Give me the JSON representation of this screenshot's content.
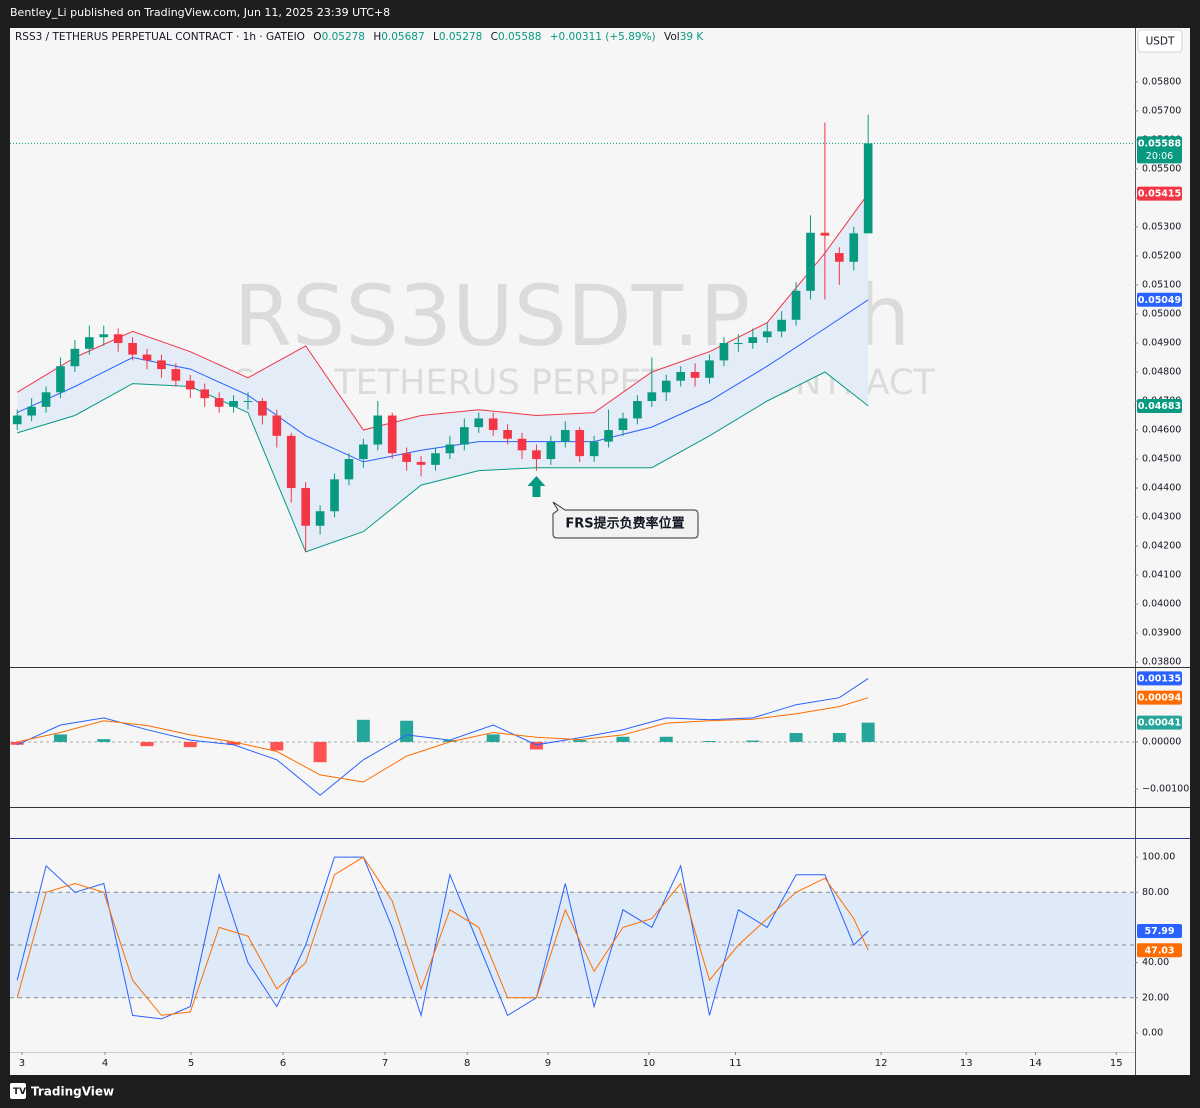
{
  "header": {
    "publisher": "Bentley_Li published on TradingView.com, Jun 11, 2025 23:39 UTC+8"
  },
  "footer": {
    "brand": "TradingView"
  },
  "chart_data": [
    {
      "type": "candlestick",
      "title": "RSS3 / TETHERUS PERPETUAL CONTRACT · 1h · GATEIO",
      "watermark": "RSS3USDT.P, 1h",
      "watermark_subtitle": "RSS3 / TETHERUS PERPETUAL CONTRACT",
      "ohlc_labels": [
        "O",
        "H",
        "L",
        "C"
      ],
      "change": "+0.00311 (+5.89%)",
      "volume_label": "Vol",
      "volume": "39 K",
      "currency": "USDT",
      "countdown": "20:06",
      "annotation": "FRS提示负费率位置",
      "up_color": "#089981",
      "down_color": "#f23645",
      "candles": {
        "open": [
          0.0462,
          0.0465,
          0.0468,
          0.0473,
          0.0482,
          0.0488,
          0.0492,
          0.0493,
          0.049,
          0.0486,
          0.0484,
          0.0481,
          0.0477,
          0.0474,
          0.0471,
          0.0468,
          0.047,
          0.047,
          0.0465,
          0.0458,
          0.044,
          0.0427,
          0.0432,
          0.0443,
          0.045,
          0.0455,
          0.0465,
          0.0452,
          0.0449,
          0.0448,
          0.0452,
          0.0455,
          0.0461,
          0.0464,
          0.046,
          0.0457,
          0.0453,
          0.045,
          0.0456,
          0.046,
          0.0451,
          0.0456,
          0.046,
          0.0464,
          0.047,
          0.0473,
          0.0477,
          0.048,
          0.0478,
          0.0484,
          0.049,
          0.049,
          0.0492,
          0.0494,
          0.0498,
          0.0508,
          0.0528,
          0.0521,
          0.0518,
          0.05278
        ],
        "high": [
          0.0467,
          0.0471,
          0.0475,
          0.0485,
          0.0491,
          0.0496,
          0.0496,
          0.0495,
          0.0492,
          0.0488,
          0.0486,
          0.0483,
          0.0479,
          0.0476,
          0.0473,
          0.0472,
          0.0473,
          0.0471,
          0.0467,
          0.0459,
          0.0442,
          0.0434,
          0.0445,
          0.0452,
          0.0457,
          0.047,
          0.0466,
          0.0454,
          0.0451,
          0.0454,
          0.0458,
          0.0464,
          0.0466,
          0.0466,
          0.0462,
          0.0459,
          0.0455,
          0.0458,
          0.0463,
          0.0461,
          0.0458,
          0.0467,
          0.0466,
          0.0472,
          0.0485,
          0.0479,
          0.0482,
          0.0483,
          0.0486,
          0.0492,
          0.0493,
          0.0495,
          0.0497,
          0.0501,
          0.0511,
          0.0534,
          0.0566,
          0.0523,
          0.053,
          0.05687
        ],
        "low": [
          0.046,
          0.0463,
          0.0466,
          0.0471,
          0.048,
          0.0486,
          0.0489,
          0.0487,
          0.0484,
          0.0481,
          0.0478,
          0.0475,
          0.0471,
          0.0468,
          0.0466,
          0.0466,
          0.0467,
          0.0462,
          0.0454,
          0.0435,
          0.0418,
          0.0424,
          0.043,
          0.0441,
          0.0447,
          0.0453,
          0.045,
          0.0446,
          0.0444,
          0.0446,
          0.045,
          0.0453,
          0.0459,
          0.0458,
          0.0455,
          0.045,
          0.0446,
          0.0448,
          0.0454,
          0.0449,
          0.0449,
          0.0454,
          0.0458,
          0.0462,
          0.0468,
          0.047,
          0.0475,
          0.0475,
          0.0476,
          0.0482,
          0.0487,
          0.0488,
          0.049,
          0.0492,
          0.0496,
          0.0505,
          0.0505,
          0.051,
          0.0515,
          0.05278
        ],
        "close": [
          0.0465,
          0.0468,
          0.0473,
          0.0482,
          0.0488,
          0.0492,
          0.0493,
          0.049,
          0.0486,
          0.0484,
          0.0481,
          0.0477,
          0.0474,
          0.0471,
          0.0468,
          0.047,
          0.047,
          0.0465,
          0.0458,
          0.044,
          0.0427,
          0.0432,
          0.0443,
          0.045,
          0.0455,
          0.0465,
          0.0452,
          0.0449,
          0.0448,
          0.0452,
          0.0455,
          0.0461,
          0.0464,
          0.046,
          0.0457,
          0.0453,
          0.045,
          0.0456,
          0.046,
          0.0451,
          0.0456,
          0.046,
          0.0464,
          0.047,
          0.0473,
          0.0477,
          0.048,
          0.0478,
          0.0484,
          0.049,
          0.049,
          0.0492,
          0.0494,
          0.0498,
          0.0508,
          0.0528,
          0.0527,
          0.0518,
          0.05278,
          0.05588
        ]
      },
      "bands": {
        "x": [
          0,
          4,
          8,
          12,
          16,
          20,
          24,
          28,
          32,
          36,
          40,
          44,
          48,
          52,
          56,
          59
        ],
        "fill": "#e3ecf7",
        "upper": {
          "color": "#f23645",
          "values": [
            0.0473,
            0.0485,
            0.0494,
            0.0487,
            0.0478,
            0.0489,
            0.046,
            0.0465,
            0.0467,
            0.0465,
            0.0466,
            0.048,
            0.0487,
            0.0497,
            0.0521,
            0.05415
          ]
        },
        "middle": {
          "color": "#2962ff",
          "values": [
            0.0466,
            0.0475,
            0.0485,
            0.0481,
            0.0472,
            0.0458,
            0.0449,
            0.0453,
            0.0456,
            0.0456,
            0.0456,
            0.0461,
            0.047,
            0.0482,
            0.0495,
            0.05049
          ]
        },
        "lower": {
          "color": "#089981",
          "values": [
            0.0459,
            0.0465,
            0.0476,
            0.0475,
            0.0466,
            0.0418,
            0.0425,
            0.0441,
            0.0446,
            0.0447,
            0.0447,
            0.0447,
            0.0458,
            0.047,
            0.048,
            0.04683
          ]
        }
      },
      "xlim": [
        0,
        78
      ],
      "xticks": [
        {
          "value": 0.83,
          "label": "3"
        },
        {
          "value": 6.59,
          "label": "4"
        },
        {
          "value": 12.55,
          "label": "5"
        },
        {
          "value": 18.93,
          "label": "6"
        },
        {
          "value": 26.0,
          "label": "7"
        },
        {
          "value": 31.7,
          "label": "8"
        },
        {
          "value": 37.3,
          "label": "9"
        },
        {
          "value": 44.3,
          "label": "10"
        },
        {
          "value": 50.3,
          "label": "11"
        },
        {
          "value": 60.4,
          "label": "12"
        },
        {
          "value": 66.3,
          "label": "13"
        },
        {
          "value": 71.1,
          "label": "14"
        },
        {
          "value": 76.7,
          "label": "15"
        }
      ],
      "ylim": [
        0.0379,
        0.0591
      ],
      "yticks": [
        {
          "value": 0.038,
          "label": "0.03800"
        },
        {
          "value": 0.039,
          "label": "0.03900"
        },
        {
          "value": 0.04,
          "label": "0.04000"
        },
        {
          "value": 0.041,
          "label": "0.04100"
        },
        {
          "value": 0.042,
          "label": "0.04200"
        },
        {
          "value": 0.043,
          "label": "0.04300"
        },
        {
          "value": 0.044,
          "label": "0.04400"
        },
        {
          "value": 0.045,
          "label": "0.04500"
        },
        {
          "value": 0.046,
          "label": "0.04600"
        },
        {
          "value": 0.047,
          "label": "0.04700"
        },
        {
          "value": 0.048,
          "label": "0.04800"
        },
        {
          "value": 0.049,
          "label": "0.04900"
        },
        {
          "value": 0.05,
          "label": "0.05000"
        },
        {
          "value": 0.051,
          "label": "0.05100"
        },
        {
          "value": 0.052,
          "label": "0.05200"
        },
        {
          "value": 0.053,
          "label": "0.05300"
        },
        {
          "value": 0.054,
          "label": "0.05400"
        },
        {
          "value": 0.055,
          "label": "0.05500"
        },
        {
          "value": 0.056,
          "label": "0.05600"
        },
        {
          "value": 0.057,
          "label": "0.05700"
        },
        {
          "value": 0.058,
          "label": "0.05800"
        }
      ]
    },
    {
      "type": "macd",
      "x": [
        0,
        3,
        6,
        9,
        12,
        15,
        18,
        21,
        24,
        27,
        30,
        33,
        36,
        39,
        42,
        45,
        48,
        51,
        54,
        57,
        59
      ],
      "macd": {
        "color": "#2962ff",
        "values": [
          -6e-05,
          0.00036,
          0.00051,
          0.00026,
          4e-05,
          -6e-05,
          -0.00038,
          -0.00113,
          -0.00038,
          0.00015,
          4e-05,
          0.00036,
          -6e-05,
          9e-05,
          0.00026,
          0.00051,
          0.00047,
          0.00051,
          0.00079,
          0.00094,
          0.00135
        ]
      },
      "signal": {
        "color": "#ff6d00",
        "values": [
          0.0,
          0.0002,
          0.00045,
          0.00035,
          0.00015,
          0.0,
          -0.0002,
          -0.0007,
          -0.00085,
          -0.0003,
          0.0,
          0.0002,
          0.0001,
          5e-05,
          0.00015,
          0.0004,
          0.00045,
          0.00048,
          0.0006,
          0.00075,
          0.00094
        ]
      },
      "histogram": {
        "up_color": "#26a69a",
        "down_color": "#ff5252",
        "values": [
          -6e-05,
          0.00016,
          6e-05,
          -9e-05,
          -0.00011,
          -6e-05,
          -0.00018,
          -0.00043,
          0.00047,
          0.00045,
          4e-05,
          0.00016,
          -0.00016,
          4e-05,
          0.00011,
          0.00011,
          2e-05,
          3e-05,
          0.00019,
          0.00019,
          0.00041
        ]
      },
      "zero_line": true,
      "ylim": [
        -0.00136,
        0.00157
      ],
      "yticks": [
        {
          "value": 0,
          "label": "0.00000"
        },
        {
          "value": -0.001,
          "label": "−0.00100"
        }
      ]
    },
    {
      "type": "line",
      "x": [
        0,
        2,
        4,
        6,
        8,
        10,
        12,
        14,
        16,
        18,
        20,
        22,
        24,
        26,
        28,
        30,
        32,
        34,
        36,
        38,
        40,
        42,
        44,
        46,
        48,
        50,
        52,
        54,
        56,
        58,
        59
      ],
      "series": [
        {
          "color": "#2962ff",
          "values": [
            30,
            95,
            80,
            85,
            10,
            8,
            15,
            90,
            40,
            15,
            50,
            100,
            100,
            60,
            10,
            90,
            50,
            10,
            20,
            85,
            15,
            70,
            60,
            95,
            10,
            70,
            60,
            90,
            90,
            50,
            57.99
          ]
        },
        {
          "color": "#ff6d00",
          "values": [
            20,
            80,
            85,
            80,
            30,
            10,
            12,
            60,
            55,
            25,
            40,
            90,
            100,
            75,
            25,
            70,
            60,
            20,
            20,
            70,
            35,
            60,
            65,
            85,
            30,
            50,
            65,
            80,
            88,
            65,
            47.03
          ]
        }
      ],
      "levels": [
        80,
        50,
        20
      ],
      "band_color": "#deeaf7",
      "ylim": [
        -10.8,
        109.7
      ],
      "yticks": [
        {
          "value": 0,
          "label": "0.00"
        },
        {
          "value": 20,
          "label": "20.00"
        },
        {
          "value": 40,
          "label": "40.00"
        },
        {
          "value": 80,
          "label": "80.00"
        },
        {
          "value": 100,
          "label": "100.00"
        }
      ]
    }
  ]
}
